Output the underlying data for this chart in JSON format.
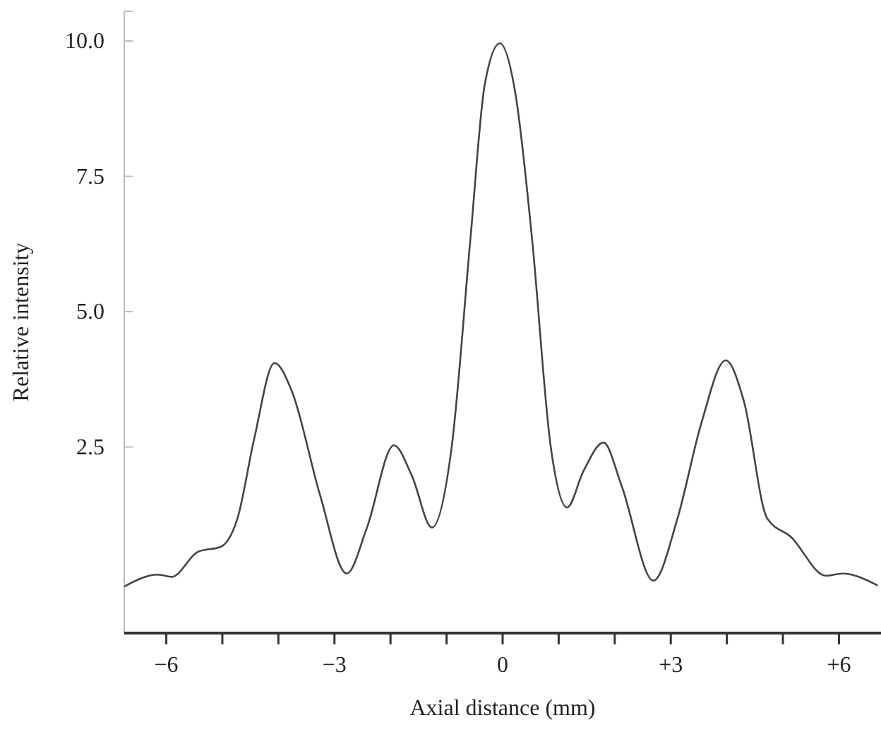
{
  "chart_data": {
    "type": "line",
    "xlabel": "Axial distance (mm)",
    "ylabel": "Relative intensity",
    "xlim": [
      -6.75,
      6.75
    ],
    "xticks": [
      {
        "value": -6,
        "label": "−6"
      },
      {
        "value": -5,
        "label": null
      },
      {
        "value": -4,
        "label": null
      },
      {
        "value": -3,
        "label": "−3"
      },
      {
        "value": -2,
        "label": null
      },
      {
        "value": -1,
        "label": null
      },
      {
        "value": 0,
        "label": "0"
      },
      {
        "value": 1,
        "label": null
      },
      {
        "value": 2,
        "label": null
      },
      {
        "value": 3,
        "label": "+3"
      },
      {
        "value": 4,
        "label": null
      },
      {
        "value": 5,
        "label": null
      },
      {
        "value": 6,
        "label": "+6"
      }
    ],
    "ylim": [
      -0.94,
      10.55
    ],
    "yticks": [
      {
        "value": 2.5,
        "label": "2.5"
      },
      {
        "value": 5,
        "label": "5.0"
      },
      {
        "value": 7.5,
        "label": "7.5"
      },
      {
        "value": 10,
        "label": "10.0"
      }
    ],
    "grid": false,
    "marker": "none",
    "line_style": "solid",
    "series": [
      {
        "color": "#444444",
        "x": [
          -6.75,
          -6.15,
          -5.9,
          -5.44,
          -5.02,
          -4.73,
          -4.43,
          -4.07,
          -3.76,
          -3.26,
          -2.78,
          -2.42,
          -1.94,
          -1.62,
          -1.26,
          -0.91,
          -0.57,
          -0.32,
          -0.05,
          0.23,
          0.52,
          0.86,
          1.15,
          1.44,
          1.8,
          2.12,
          2.69,
          3.12,
          3.54,
          3.98,
          4.3,
          4.72,
          5.14,
          5.77,
          6.06,
          6.69
        ],
        "values": [
          -0.08,
          0.14,
          0.1,
          0.56,
          0.66,
          1.18,
          2.66,
          4.05,
          3.53,
          1.62,
          0.16,
          1.01,
          2.53,
          1.97,
          1.01,
          2.49,
          6.4,
          9.19,
          9.96,
          9.02,
          6.4,
          2.49,
          1.38,
          2.05,
          2.58,
          1.79,
          0.03,
          1.18,
          2.92,
          4.1,
          3.36,
          1.18,
          0.84,
          0.12,
          0.16,
          -0.06
        ]
      }
    ]
  }
}
